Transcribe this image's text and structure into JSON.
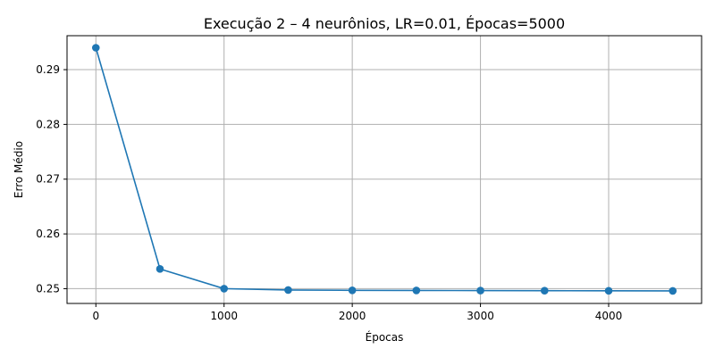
{
  "chart_data": {
    "type": "line",
    "title": "Execução 2 – 4 neurônios, LR=0.01, Épocas=5000",
    "xlabel": "Épocas",
    "ylabel": "Erro Médio",
    "x": [
      0,
      500,
      1000,
      1500,
      2000,
      2500,
      3000,
      3500,
      4000,
      4500
    ],
    "series": [
      {
        "values": [
          0.294,
          0.2536,
          0.25,
          0.24975,
          0.2497,
          0.24968,
          0.24965,
          0.24963,
          0.24961,
          0.24959
        ],
        "color": "#1f77b4",
        "marker": "circle"
      }
    ],
    "xlim": [
      -225,
      4725
    ],
    "ylim": [
      0.2473,
      0.2962
    ],
    "xticks": [
      0,
      1000,
      2000,
      3000,
      4000
    ],
    "yticks": [
      0.25,
      0.26,
      0.27,
      0.28,
      0.29
    ],
    "xtick_labels": [
      "0",
      "1000",
      "2000",
      "3000",
      "4000"
    ],
    "ytick_labels": [
      "0.25",
      "0.26",
      "0.27",
      "0.28",
      "0.29"
    ],
    "grid": true,
    "legend": "none"
  }
}
